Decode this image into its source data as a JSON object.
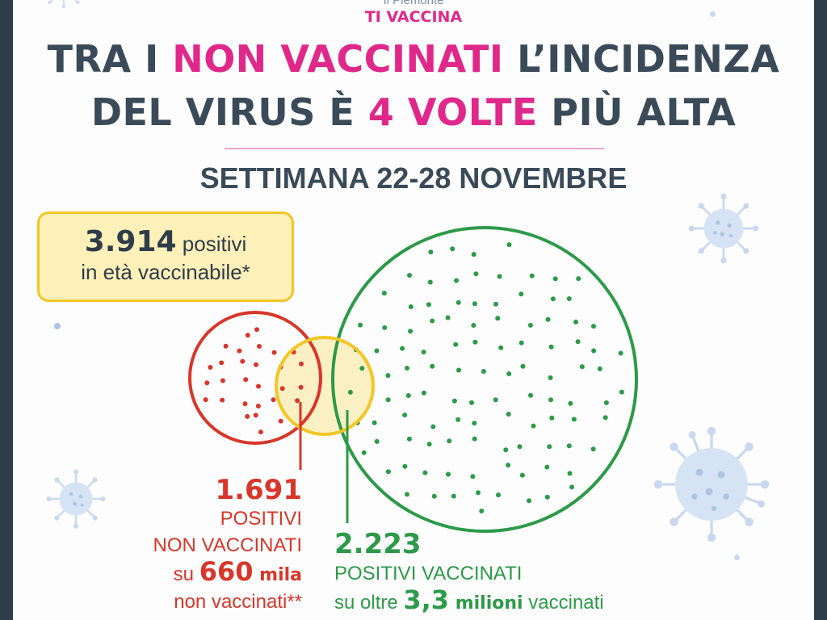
{
  "brand": {
    "line1": "Il Piemonte",
    "line2": "TI VACCINA"
  },
  "headline": {
    "line1_pre": "TRA I ",
    "line1_highlight": "NON VACCINATI",
    "line1_post": " L’INCIDENZA",
    "line2_pre": "DEL VIRUS È ",
    "line2_highlight": "4 VOLTE",
    "line2_post": " PIÙ ALTA"
  },
  "week": "SETTIMANA 22-28 NOVEMBRE",
  "total": {
    "number": "3.914",
    "text1": " positivi",
    "text2": "in età vaccinabile*"
  },
  "unvaccinated": {
    "number": "1.691",
    "line1": "POSITIVI",
    "line2": "NON VACCINATI",
    "line3_pre": "su ",
    "line3_num": "660",
    "line3_unit": " mila",
    "line4": "non vaccinati**"
  },
  "vaccinated": {
    "number": "2.223",
    "line1": "POSITIVI VACCINATI",
    "line2_pre": "su oltre ",
    "line2_num": "3,3",
    "line2_unit": " milioni",
    "line2_post": " vaccinati"
  },
  "colors": {
    "pink": "#e0288a",
    "red": "#d8362a",
    "green": "#2c9a48",
    "yellow": "#f2c626",
    "text_dark": "#3a4a58",
    "virus": "#c9d8ef"
  },
  "icons": [
    "virus-icon",
    "dot-icon"
  ]
}
